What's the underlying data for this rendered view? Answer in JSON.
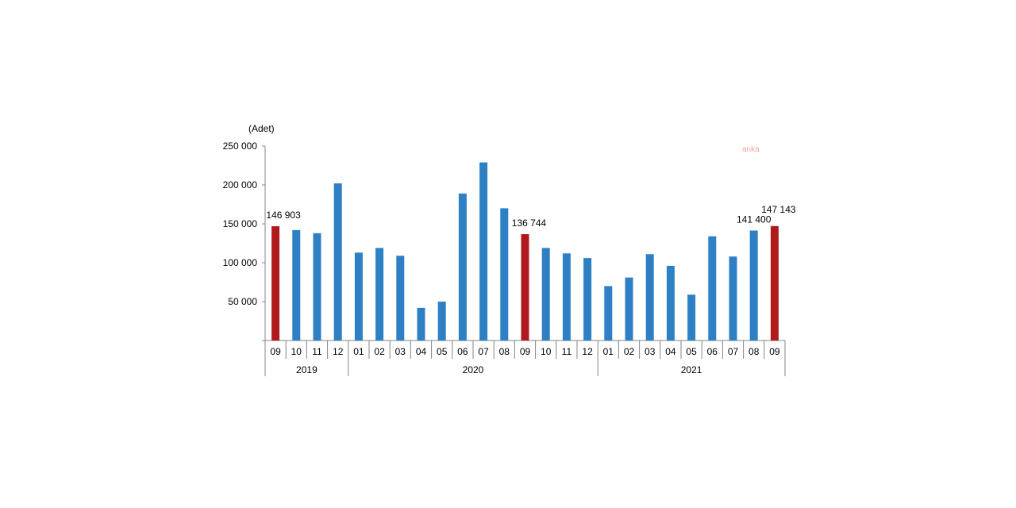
{
  "chart_data": {
    "type": "bar",
    "ylabel": "(Adet)",
    "ylim": [
      0,
      250000
    ],
    "yticks": [
      0,
      50000,
      100000,
      150000,
      200000,
      250000
    ],
    "ytick_labels": [
      "",
      "50 000",
      "100 000",
      "150 000",
      "200 000",
      "250 000"
    ],
    "categories": [
      "09",
      "10",
      "11",
      "12",
      "01",
      "02",
      "03",
      "04",
      "05",
      "06",
      "07",
      "08",
      "09",
      "10",
      "11",
      "12",
      "01",
      "02",
      "03",
      "04",
      "05",
      "06",
      "07",
      "08",
      "09"
    ],
    "years": [
      {
        "label": "2019",
        "count": 4
      },
      {
        "label": "2020",
        "count": 12
      },
      {
        "label": "2021",
        "count": 9
      }
    ],
    "values": [
      146903,
      142000,
      138000,
      202000,
      113000,
      119000,
      109000,
      42000,
      50000,
      189000,
      229000,
      170000,
      136744,
      119000,
      112000,
      106000,
      70000,
      81000,
      111000,
      96000,
      59000,
      134000,
      108000,
      141400,
      147143
    ],
    "highlight": [
      0,
      12,
      24
    ],
    "data_labels": [
      {
        "index": 0,
        "text": "146 903"
      },
      {
        "index": 12,
        "text": "136 744"
      },
      {
        "index": 23,
        "text": "141 400"
      },
      {
        "index": 24,
        "text": "147 143"
      }
    ],
    "colors": {
      "bar": "#2e80c4",
      "highlight": "#b0191c",
      "axis": "#868686"
    },
    "grid": false
  },
  "watermark": "anka"
}
